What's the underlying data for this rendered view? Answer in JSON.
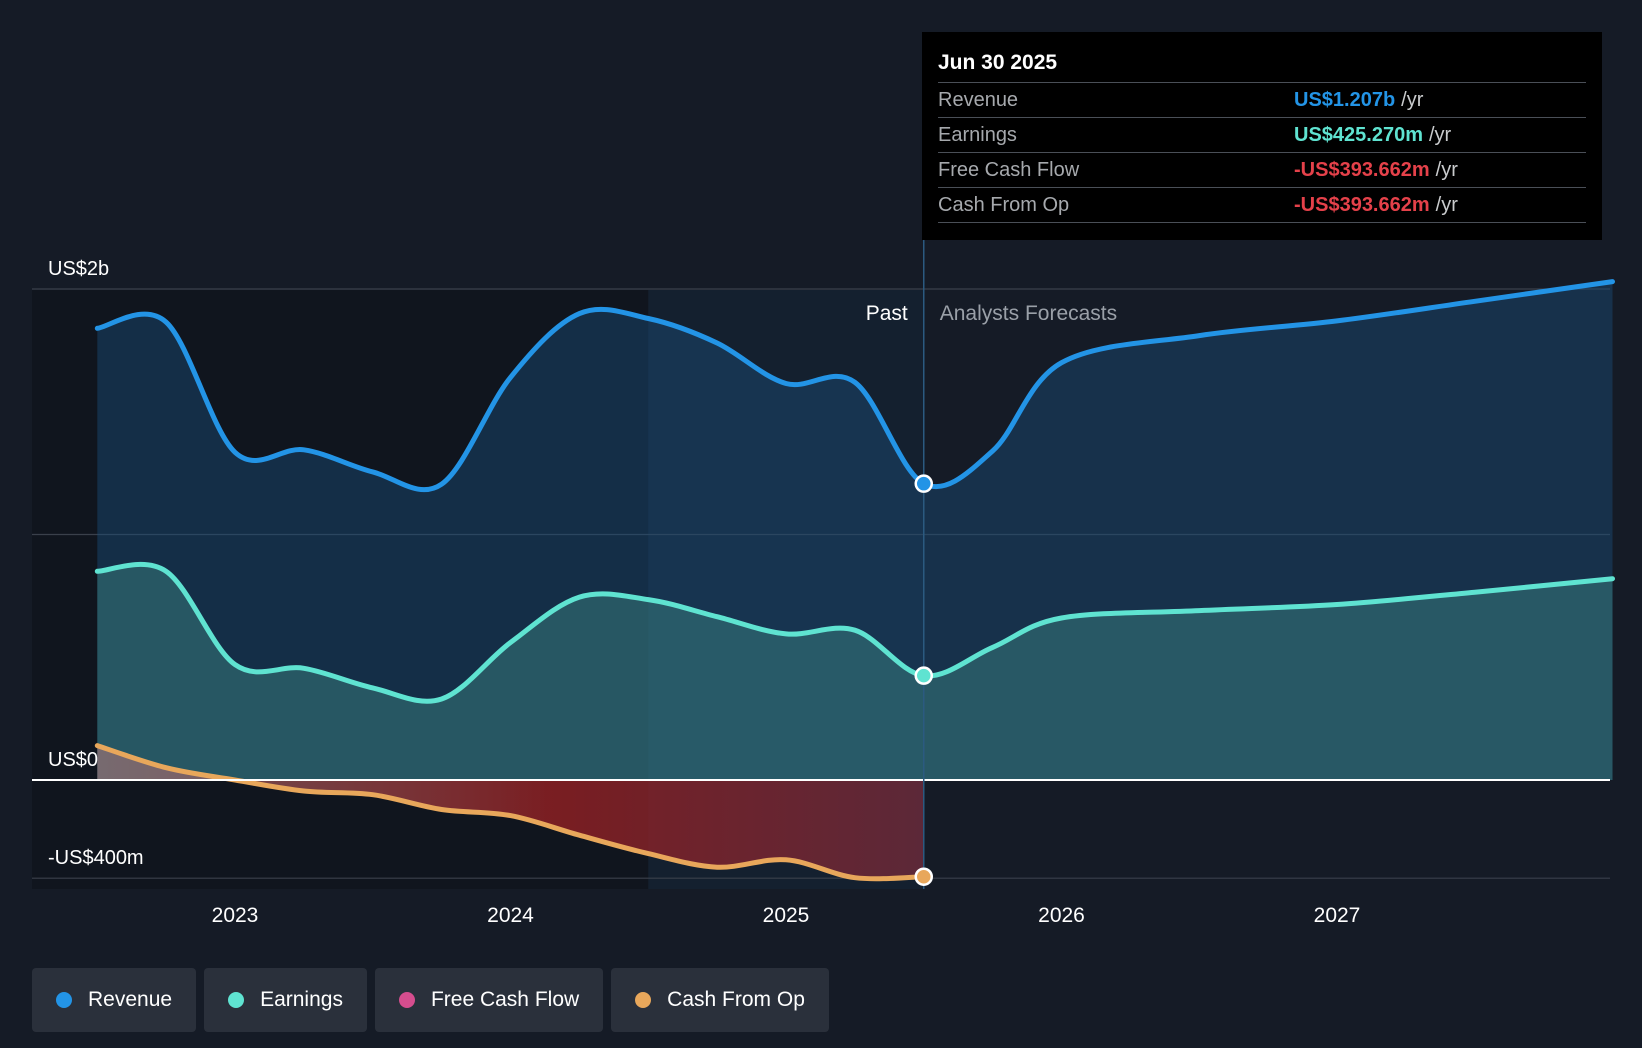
{
  "chart_data": {
    "type": "area",
    "title": "",
    "xlabel": "",
    "ylabel": "",
    "x_ticks": [
      "2023",
      "2024",
      "2025",
      "2026",
      "2027"
    ],
    "y_tick_labels": [
      "US$2b",
      "US$0",
      "-US$400m"
    ],
    "ylim": [
      -400,
      2000
    ],
    "units": "US$m",
    "grid": true,
    "past_label": "Past",
    "forecast_label": "Analysts Forecasts",
    "divider_date": 2025.5,
    "series": [
      {
        "name": "Revenue",
        "color": "#2394e6",
        "x": [
          2022.5,
          2022.75,
          2023.0,
          2023.25,
          2023.5,
          2023.75,
          2024.0,
          2024.25,
          2024.5,
          2024.75,
          2025.0,
          2025.25,
          2025.5,
          2025.75,
          2026.0,
          2026.5,
          2027.0,
          2027.5,
          2028.0
        ],
        "values": [
          1840,
          1865,
          1335,
          1345,
          1255,
          1205,
          1640,
          1900,
          1880,
          1780,
          1615,
          1620,
          1207,
          1340,
          1700,
          1810,
          1870,
          1950,
          2030
        ]
      },
      {
        "name": "Earnings",
        "color": "#5fe3d1",
        "x": [
          2022.5,
          2022.75,
          2023.0,
          2023.25,
          2023.5,
          2023.75,
          2024.0,
          2024.25,
          2024.5,
          2024.75,
          2025.0,
          2025.25,
          2025.5,
          2025.75,
          2026.0,
          2026.5,
          2027.0,
          2027.5,
          2028.0
        ],
        "values": [
          850,
          850,
          470,
          455,
          375,
          330,
          560,
          745,
          735,
          665,
          595,
          610,
          425,
          540,
          660,
          690,
          715,
          765,
          820
        ]
      },
      {
        "name": "Free Cash Flow",
        "color": "#d54d8e",
        "x": [
          2022.5,
          2022.75,
          2023.0,
          2023.25,
          2023.5,
          2023.75,
          2024.0,
          2024.25,
          2024.5,
          2024.75,
          2025.0,
          2025.25,
          2025.5
        ],
        "values": [
          140,
          50,
          0,
          -45,
          -60,
          -120,
          -145,
          -225,
          -300,
          -355,
          -325,
          -398,
          -394
        ]
      },
      {
        "name": "Cash From Op",
        "color": "#e8a75b",
        "x": [
          2022.5,
          2022.75,
          2023.0,
          2023.25,
          2023.5,
          2023.75,
          2024.0,
          2024.25,
          2024.5,
          2024.75,
          2025.0,
          2025.25,
          2025.5
        ],
        "values": [
          140,
          50,
          0,
          -45,
          -60,
          -120,
          -145,
          -225,
          -300,
          -355,
          -325,
          -398,
          -394
        ]
      }
    ]
  },
  "tooltip": {
    "date": "Jun 30 2025",
    "rows": [
      {
        "label": "Revenue",
        "value": "US$1.207b",
        "unit": "/yr",
        "color": "#2394e6"
      },
      {
        "label": "Earnings",
        "value": "US$425.270m",
        "unit": "/yr",
        "color": "#5fe3d1"
      },
      {
        "label": "Free Cash Flow",
        "value": "-US$393.662m",
        "unit": "/yr",
        "color": "#e5414a"
      },
      {
        "label": "Cash From Op",
        "value": "-US$393.662m",
        "unit": "/yr",
        "color": "#e5414a"
      }
    ]
  },
  "legend": [
    {
      "label": "Revenue",
      "color": "#2394e6"
    },
    {
      "label": "Earnings",
      "color": "#5fe3d1"
    },
    {
      "label": "Free Cash Flow",
      "color": "#d54d8e"
    },
    {
      "label": "Cash From Op",
      "color": "#e8a75b"
    }
  ]
}
